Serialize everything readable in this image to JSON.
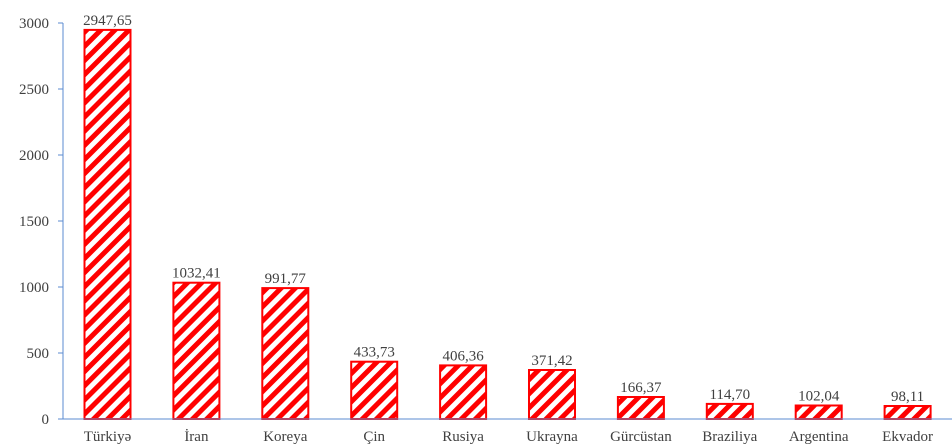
{
  "chart_data": {
    "type": "bar",
    "categories": [
      "Türkiyə",
      "İran",
      "Koreya",
      "Çin",
      "Rusiya",
      "Ukrayna",
      "Gürcüstan",
      "Braziliya",
      "Argentina",
      "Ekvador"
    ],
    "values": [
      2947.65,
      1032.41,
      991.77,
      433.73,
      406.36,
      371.42,
      166.37,
      114.7,
      102.04,
      98.11
    ],
    "data_labels": [
      "2947,65",
      "1032,41",
      "991,77",
      "433,73",
      "406,36",
      "371,42",
      "166,37",
      "114,70",
      "102,04",
      "98,11"
    ],
    "ylim": [
      0,
      3000
    ],
    "yticks": [
      0,
      500,
      1000,
      1500,
      2000,
      2500,
      3000
    ],
    "title": "",
    "xlabel": "",
    "ylabel": "",
    "grid": false,
    "bar_style": "diagonal-hatch",
    "colors": {
      "bar": "#ff0000",
      "axis": "#5b8bd0",
      "text": "#404040"
    }
  }
}
